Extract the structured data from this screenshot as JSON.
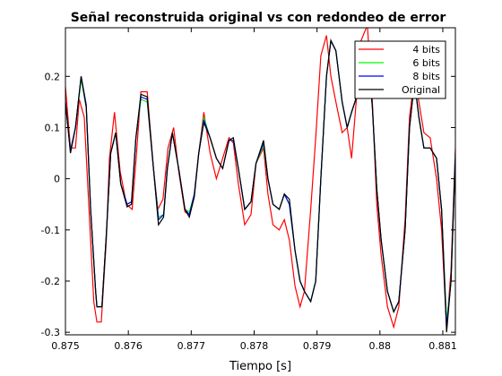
{
  "chart_data": {
    "type": "line",
    "title": "Señal reconstruida original vs con redondeo de error",
    "xlabel": "Tiempo [s]",
    "ylabel": "",
    "xlim": [
      0.875,
      0.8812
    ],
    "ylim": [
      -0.305,
      0.295
    ],
    "xticks": [
      0.875,
      0.876,
      0.877,
      0.878,
      0.879,
      0.88,
      0.881
    ],
    "xtick_labels": [
      "0.875",
      "0.876",
      "0.877",
      "0.878",
      "0.879",
      "0.88",
      "0.881"
    ],
    "yticks": [
      -0.3,
      -0.2,
      -0.1,
      0,
      0.1,
      0.2
    ],
    "ytick_labels": [
      "-0.3",
      "-0.2",
      "-0.1",
      "0",
      "0.1",
      "0.2"
    ],
    "grid": false,
    "legend_position": "top-right",
    "series": [
      {
        "name": "4 bits",
        "color": "#ff0000",
        "x": [
          0.875,
          0.87508,
          0.87516,
          0.87522,
          0.8753,
          0.87537,
          0.87545,
          0.8755,
          0.87557,
          0.87565,
          0.8757,
          0.87578,
          0.87587,
          0.87597,
          0.87606,
          0.87613,
          0.8762,
          0.8763,
          0.8764,
          0.87647,
          0.87655,
          0.87663,
          0.87672,
          0.8768,
          0.8769,
          0.87697,
          0.87704,
          0.87713,
          0.8772,
          0.8773,
          0.8774,
          0.8775,
          0.8776,
          0.87767,
          0.87775,
          0.87785,
          0.87795,
          0.87803,
          0.87815,
          0.87822,
          0.8783,
          0.8784,
          0.87848,
          0.87856,
          0.87865,
          0.87873,
          0.8788,
          0.8789,
          0.87898,
          0.87906,
          0.87915,
          0.87922,
          0.8793,
          0.8794,
          0.87948,
          0.87955,
          0.87963,
          0.8797,
          0.8798,
          0.87988,
          0.87995,
          0.88002,
          0.88012,
          0.88022,
          0.8803,
          0.8804,
          0.88047,
          0.88055,
          0.88062,
          0.8807,
          0.8808,
          0.8809,
          0.88098,
          0.88106,
          0.88113,
          0.8812
        ],
        "y": [
          0.18,
          0.06,
          0.06,
          0.155,
          0.12,
          -0.05,
          -0.24,
          -0.28,
          -0.28,
          -0.12,
          0.04,
          0.13,
          0.015,
          -0.05,
          -0.06,
          0.05,
          0.17,
          0.17,
          0.02,
          -0.06,
          -0.04,
          0.06,
          0.1,
          0.015,
          -0.065,
          -0.07,
          -0.04,
          0.06,
          0.13,
          0.05,
          0.0,
          0.04,
          0.08,
          0.07,
          -0.01,
          -0.09,
          -0.07,
          0.03,
          0.06,
          -0.03,
          -0.09,
          -0.1,
          -0.08,
          -0.12,
          -0.21,
          -0.25,
          -0.22,
          -0.06,
          0.08,
          0.24,
          0.28,
          0.2,
          0.15,
          0.09,
          0.1,
          0.04,
          0.16,
          0.27,
          0.3,
          0.15,
          -0.05,
          -0.15,
          -0.25,
          -0.29,
          -0.25,
          -0.08,
          0.12,
          0.2,
          0.15,
          0.09,
          0.08,
          0.0,
          -0.1,
          -0.29,
          -0.18,
          0.06
        ]
      },
      {
        "name": "6 bits",
        "color": "#00ff00",
        "x": [
          0.875,
          0.87508,
          0.87516,
          0.87525,
          0.87533,
          0.8754,
          0.87548,
          0.8755,
          0.87558,
          0.87565,
          0.87572,
          0.8758,
          0.87588,
          0.87598,
          0.87605,
          0.87612,
          0.8762,
          0.8763,
          0.8764,
          0.87648,
          0.87656,
          0.87662,
          0.8767,
          0.8768,
          0.8769,
          0.87697,
          0.87705,
          0.87712,
          0.8772,
          0.8773,
          0.8774,
          0.8775,
          0.8776,
          0.87767,
          0.87775,
          0.87785,
          0.87795,
          0.87803,
          0.87815,
          0.87822,
          0.8783,
          0.8784,
          0.87848,
          0.87856,
          0.87865,
          0.87873,
          0.8788,
          0.8789,
          0.87898,
          0.87906,
          0.87915,
          0.87922,
          0.8793,
          0.8794,
          0.87948,
          0.87955,
          0.87963,
          0.8797,
          0.8798,
          0.87988,
          0.87995,
          0.88002,
          0.88012,
          0.88022,
          0.8803,
          0.8804,
          0.88047,
          0.88055,
          0.88062,
          0.8807,
          0.8808,
          0.8809,
          0.88098,
          0.88106,
          0.88113,
          0.8812
        ],
        "y": [
          0.15,
          0.055,
          0.1,
          0.195,
          0.14,
          -0.06,
          -0.22,
          -0.25,
          -0.25,
          -0.11,
          0.05,
          0.09,
          -0.01,
          -0.05,
          -0.045,
          0.08,
          0.155,
          0.15,
          0.02,
          -0.075,
          -0.07,
          0.02,
          0.09,
          0.02,
          -0.06,
          -0.065,
          -0.03,
          0.05,
          0.12,
          0.08,
          0.04,
          0.02,
          0.075,
          0.075,
          0.02,
          -0.06,
          -0.045,
          0.03,
          0.065,
          0.0,
          -0.05,
          -0.06,
          -0.03,
          -0.05,
          -0.14,
          -0.2,
          -0.22,
          -0.24,
          -0.2,
          0.0,
          0.2,
          0.27,
          0.25,
          0.15,
          0.1,
          0.13,
          0.16,
          0.25,
          0.26,
          0.14,
          -0.02,
          -0.12,
          -0.22,
          -0.26,
          -0.24,
          -0.1,
          0.1,
          0.19,
          0.12,
          0.06,
          0.06,
          0.04,
          -0.06,
          -0.28,
          -0.2,
          0.05
        ]
      },
      {
        "name": "8 bits",
        "color": "#0000ff",
        "x": [
          0.875,
          0.87508,
          0.87516,
          0.87525,
          0.87533,
          0.8754,
          0.87548,
          0.8755,
          0.87558,
          0.87565,
          0.87572,
          0.8758,
          0.87588,
          0.87598,
          0.87605,
          0.87612,
          0.8762,
          0.8763,
          0.8764,
          0.87648,
          0.87656,
          0.87662,
          0.8767,
          0.8768,
          0.8769,
          0.87697,
          0.87705,
          0.87712,
          0.8772,
          0.8773,
          0.8774,
          0.8775,
          0.8776,
          0.87767,
          0.87775,
          0.87785,
          0.87795,
          0.87803,
          0.87815,
          0.87822,
          0.8783,
          0.8784,
          0.87848,
          0.87856,
          0.87865,
          0.87873,
          0.8788,
          0.8789,
          0.87898,
          0.87906,
          0.87915,
          0.87922,
          0.8793,
          0.8794,
          0.87948,
          0.87955,
          0.87963,
          0.8797,
          0.8798,
          0.87988,
          0.87995,
          0.88002,
          0.88012,
          0.88022,
          0.8803,
          0.8804,
          0.88047,
          0.88055,
          0.88062,
          0.8807,
          0.8808,
          0.8809,
          0.88098,
          0.88106,
          0.88113,
          0.8812
        ],
        "y": [
          0.15,
          0.055,
          0.1,
          0.2,
          0.145,
          -0.06,
          -0.22,
          -0.25,
          -0.25,
          -0.11,
          0.05,
          0.09,
          -0.01,
          -0.05,
          -0.045,
          0.08,
          0.16,
          0.155,
          0.02,
          -0.08,
          -0.07,
          0.02,
          0.09,
          0.02,
          -0.06,
          -0.07,
          -0.03,
          0.05,
          0.115,
          0.08,
          0.04,
          0.02,
          0.075,
          0.075,
          0.02,
          -0.06,
          -0.045,
          0.03,
          0.07,
          0.0,
          -0.05,
          -0.06,
          -0.03,
          -0.05,
          -0.14,
          -0.2,
          -0.22,
          -0.24,
          -0.2,
          0.0,
          0.2,
          0.27,
          0.25,
          0.15,
          0.1,
          0.13,
          0.16,
          0.25,
          0.26,
          0.14,
          -0.02,
          -0.12,
          -0.22,
          -0.26,
          -0.24,
          -0.1,
          0.1,
          0.19,
          0.12,
          0.06,
          0.06,
          0.04,
          -0.06,
          -0.29,
          -0.2,
          0.05
        ]
      },
      {
        "name": "Original",
        "color": "#000000",
        "x": [
          0.875,
          0.87508,
          0.87516,
          0.87525,
          0.87533,
          0.8754,
          0.87548,
          0.8755,
          0.87558,
          0.87565,
          0.87572,
          0.8758,
          0.87588,
          0.87598,
          0.87605,
          0.87612,
          0.8762,
          0.8763,
          0.8764,
          0.87648,
          0.87656,
          0.87662,
          0.8767,
          0.8768,
          0.8769,
          0.87697,
          0.87705,
          0.87712,
          0.8772,
          0.8773,
          0.8774,
          0.8775,
          0.8776,
          0.87767,
          0.87775,
          0.87785,
          0.87795,
          0.87803,
          0.87815,
          0.87822,
          0.8783,
          0.8784,
          0.87848,
          0.87856,
          0.87865,
          0.87873,
          0.8788,
          0.8789,
          0.87898,
          0.87906,
          0.87915,
          0.87922,
          0.8793,
          0.8794,
          0.87948,
          0.87955,
          0.87963,
          0.8797,
          0.8798,
          0.87988,
          0.87995,
          0.88002,
          0.88012,
          0.88022,
          0.8803,
          0.8804,
          0.88047,
          0.88055,
          0.88062,
          0.8807,
          0.8808,
          0.8809,
          0.88098,
          0.88106,
          0.88113,
          0.8812
        ],
        "y": [
          0.15,
          0.05,
          0.1,
          0.2,
          0.14,
          -0.06,
          -0.22,
          -0.25,
          -0.25,
          -0.11,
          0.05,
          0.09,
          -0.01,
          -0.055,
          -0.05,
          0.08,
          0.165,
          0.16,
          0.02,
          -0.09,
          -0.075,
          0.02,
          0.09,
          0.02,
          -0.06,
          -0.075,
          -0.035,
          0.05,
          0.11,
          0.08,
          0.04,
          0.02,
          0.075,
          0.08,
          0.02,
          -0.06,
          -0.045,
          0.03,
          0.075,
          0.0,
          -0.05,
          -0.06,
          -0.03,
          -0.04,
          -0.14,
          -0.2,
          -0.22,
          -0.24,
          -0.2,
          0.0,
          0.2,
          0.27,
          0.25,
          0.15,
          0.1,
          0.13,
          0.16,
          0.25,
          0.26,
          0.14,
          -0.02,
          -0.12,
          -0.22,
          -0.26,
          -0.24,
          -0.1,
          0.1,
          0.19,
          0.12,
          0.06,
          0.06,
          0.04,
          -0.06,
          -0.3,
          -0.2,
          0.04
        ]
      }
    ]
  }
}
